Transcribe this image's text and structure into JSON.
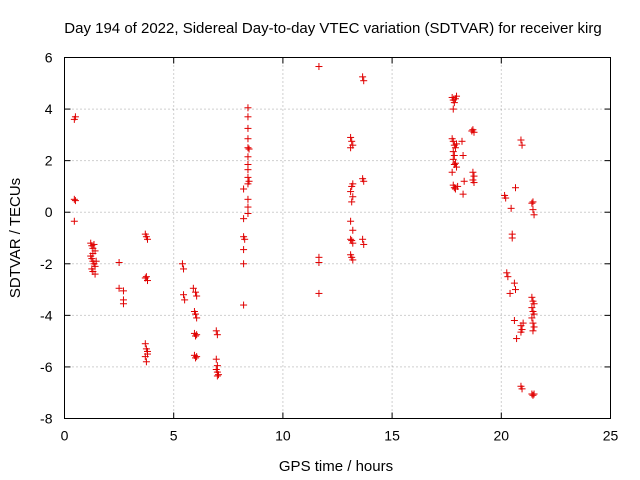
{
  "chart_data": {
    "type": "scatter",
    "title": "Day 194 of 2022, Sidereal Day-to-day VTEC variation (SDTVAR) for receiver kirg",
    "xlabel": "GPS time / hours",
    "ylabel": "SDTVAR / TECUs",
    "xlim": [
      0,
      25
    ],
    "ylim": [
      -8,
      6
    ],
    "xticks": [
      0,
      5,
      10,
      15,
      20,
      25
    ],
    "yticks": [
      -8,
      -6,
      -4,
      -2,
      0,
      2,
      4,
      6
    ],
    "xtick_labels": [
      "0",
      "5",
      "10",
      "15",
      "20",
      "25"
    ],
    "ytick_labels": [
      "-8",
      "-6",
      "-4",
      "-2",
      "0",
      "2",
      "4",
      "6"
    ],
    "grid": true,
    "marker": "+",
    "color": "#e00000",
    "series": [
      {
        "name": "SDTVAR",
        "points": [
          [
            0.45,
            3.6
          ],
          [
            0.5,
            3.7
          ],
          [
            0.45,
            0.5
          ],
          [
            0.5,
            0.45
          ],
          [
            0.45,
            -0.35
          ],
          [
            1.2,
            -1.2
          ],
          [
            1.25,
            -1.3
          ],
          [
            1.3,
            -1.4
          ],
          [
            1.35,
            -1.25
          ],
          [
            1.4,
            -1.5
          ],
          [
            1.2,
            -1.7
          ],
          [
            1.25,
            -1.8
          ],
          [
            1.3,
            -1.9
          ],
          [
            1.35,
            -2.0
          ],
          [
            1.4,
            -2.1
          ],
          [
            1.25,
            -2.2
          ],
          [
            1.3,
            -2.3
          ],
          [
            1.4,
            -2.4
          ],
          [
            1.3,
            -1.6
          ],
          [
            1.45,
            -1.9
          ],
          [
            2.5,
            -1.95
          ],
          [
            2.5,
            -2.95
          ],
          [
            2.7,
            -3.05
          ],
          [
            2.7,
            -3.4
          ],
          [
            2.7,
            -3.55
          ],
          [
            3.7,
            -0.85
          ],
          [
            3.75,
            -0.95
          ],
          [
            3.8,
            -1.05
          ],
          [
            3.7,
            -2.55
          ],
          [
            3.8,
            -2.65
          ],
          [
            3.75,
            -2.5
          ],
          [
            3.7,
            -5.1
          ],
          [
            3.75,
            -5.3
          ],
          [
            3.8,
            -5.5
          ],
          [
            3.7,
            -5.6
          ],
          [
            3.75,
            -5.8
          ],
          [
            3.8,
            -5.4
          ],
          [
            5.4,
            -2.0
          ],
          [
            5.45,
            -2.2
          ],
          [
            5.45,
            -3.2
          ],
          [
            5.5,
            -3.4
          ],
          [
            5.9,
            -2.95
          ],
          [
            6.0,
            -3.1
          ],
          [
            6.05,
            -3.25
          ],
          [
            5.95,
            -3.85
          ],
          [
            6.0,
            -3.95
          ],
          [
            6.05,
            -4.1
          ],
          [
            5.95,
            -4.7
          ],
          [
            6.0,
            -4.8
          ],
          [
            6.05,
            -4.75
          ],
          [
            5.95,
            -5.55
          ],
          [
            6.0,
            -5.65
          ],
          [
            6.05,
            -5.6
          ],
          [
            6.95,
            -4.6
          ],
          [
            7.0,
            -4.75
          ],
          [
            6.95,
            -5.7
          ],
          [
            7.0,
            -5.95
          ],
          [
            6.95,
            -6.1
          ],
          [
            7.0,
            -6.2
          ],
          [
            7.05,
            -6.3
          ],
          [
            7.0,
            -6.35
          ],
          [
            8.2,
            0.9
          ],
          [
            8.2,
            -0.25
          ],
          [
            8.2,
            -0.95
          ],
          [
            8.25,
            -1.05
          ],
          [
            8.2,
            -1.45
          ],
          [
            8.2,
            -2.0
          ],
          [
            8.2,
            -3.6
          ],
          [
            8.4,
            4.05
          ],
          [
            8.4,
            3.7
          ],
          [
            8.4,
            3.25
          ],
          [
            8.4,
            2.85
          ],
          [
            8.4,
            2.5
          ],
          [
            8.45,
            2.45
          ],
          [
            8.4,
            2.15
          ],
          [
            8.4,
            1.85
          ],
          [
            8.4,
            1.65
          ],
          [
            8.4,
            1.35
          ],
          [
            8.4,
            1.1
          ],
          [
            8.45,
            1.2
          ],
          [
            8.4,
            0.5
          ],
          [
            8.4,
            0.2
          ],
          [
            8.4,
            -0.05
          ],
          [
            11.65,
            5.65
          ],
          [
            11.65,
            -1.75
          ],
          [
            11.65,
            -1.95
          ],
          [
            11.65,
            -3.15
          ],
          [
            13.1,
            2.9
          ],
          [
            13.15,
            2.75
          ],
          [
            13.2,
            2.6
          ],
          [
            13.1,
            2.5
          ],
          [
            13.2,
            1.1
          ],
          [
            13.15,
            1.0
          ],
          [
            13.1,
            0.8
          ],
          [
            13.2,
            0.6
          ],
          [
            13.15,
            0.4
          ],
          [
            13.1,
            -0.35
          ],
          [
            13.2,
            -0.7
          ],
          [
            13.1,
            -1.05
          ],
          [
            13.15,
            -1.1
          ],
          [
            13.2,
            -1.2
          ],
          [
            13.1,
            -1.65
          ],
          [
            13.15,
            -1.75
          ],
          [
            13.2,
            -1.85
          ],
          [
            13.65,
            5.25
          ],
          [
            13.7,
            5.1
          ],
          [
            13.65,
            1.3
          ],
          [
            13.7,
            1.2
          ],
          [
            13.65,
            -1.05
          ],
          [
            13.7,
            -1.25
          ],
          [
            17.75,
            4.45
          ],
          [
            17.8,
            4.35
          ],
          [
            17.85,
            4.25
          ],
          [
            17.9,
            4.4
          ],
          [
            17.95,
            4.5
          ],
          [
            17.8,
            4.0
          ],
          [
            17.75,
            2.85
          ],
          [
            17.8,
            2.75
          ],
          [
            17.85,
            2.6
          ],
          [
            17.9,
            2.5
          ],
          [
            17.95,
            2.65
          ],
          [
            17.8,
            2.35
          ],
          [
            17.85,
            2.2
          ],
          [
            17.8,
            2.05
          ],
          [
            17.9,
            1.9
          ],
          [
            17.85,
            1.85
          ],
          [
            17.95,
            1.75
          ],
          [
            17.75,
            1.55
          ],
          [
            17.8,
            1.05
          ],
          [
            17.85,
            0.95
          ],
          [
            17.9,
            0.9
          ],
          [
            18.0,
            1.0
          ],
          [
            18.2,
            2.75
          ],
          [
            18.25,
            2.2
          ],
          [
            18.3,
            1.2
          ],
          [
            18.25,
            0.7
          ],
          [
            18.65,
            3.15
          ],
          [
            18.7,
            3.2
          ],
          [
            18.75,
            3.1
          ],
          [
            18.7,
            1.55
          ],
          [
            18.75,
            1.4
          ],
          [
            18.7,
            1.25
          ],
          [
            18.75,
            1.15
          ],
          [
            20.15,
            0.65
          ],
          [
            20.2,
            0.55
          ],
          [
            20.25,
            -2.35
          ],
          [
            20.3,
            -2.5
          ],
          [
            20.4,
            -3.15
          ],
          [
            20.45,
            0.15
          ],
          [
            20.5,
            -0.85
          ],
          [
            20.5,
            -1.0
          ],
          [
            20.6,
            -2.75
          ],
          [
            20.65,
            -3.0
          ],
          [
            20.6,
            -4.2
          ],
          [
            20.65,
            0.95
          ],
          [
            20.7,
            -4.9
          ],
          [
            20.9,
            2.8
          ],
          [
            20.95,
            2.6
          ],
          [
            20.9,
            -4.4
          ],
          [
            20.95,
            -4.55
          ],
          [
            20.9,
            -4.65
          ],
          [
            21.0,
            -4.3
          ],
          [
            20.9,
            -6.75
          ],
          [
            20.95,
            -6.85
          ],
          [
            21.4,
            0.35
          ],
          [
            21.45,
            0.1
          ],
          [
            21.5,
            -0.1
          ],
          [
            21.45,
            0.4
          ],
          [
            21.4,
            -3.3
          ],
          [
            21.45,
            -3.45
          ],
          [
            21.5,
            -3.55
          ],
          [
            21.4,
            -3.7
          ],
          [
            21.45,
            -3.85
          ],
          [
            21.5,
            -3.95
          ],
          [
            21.4,
            -4.1
          ],
          [
            21.45,
            -4.3
          ],
          [
            21.5,
            -4.45
          ],
          [
            21.45,
            -4.6
          ],
          [
            21.4,
            -7.05
          ],
          [
            21.45,
            -7.1
          ],
          [
            21.5,
            -7.05
          ]
        ]
      }
    ]
  }
}
